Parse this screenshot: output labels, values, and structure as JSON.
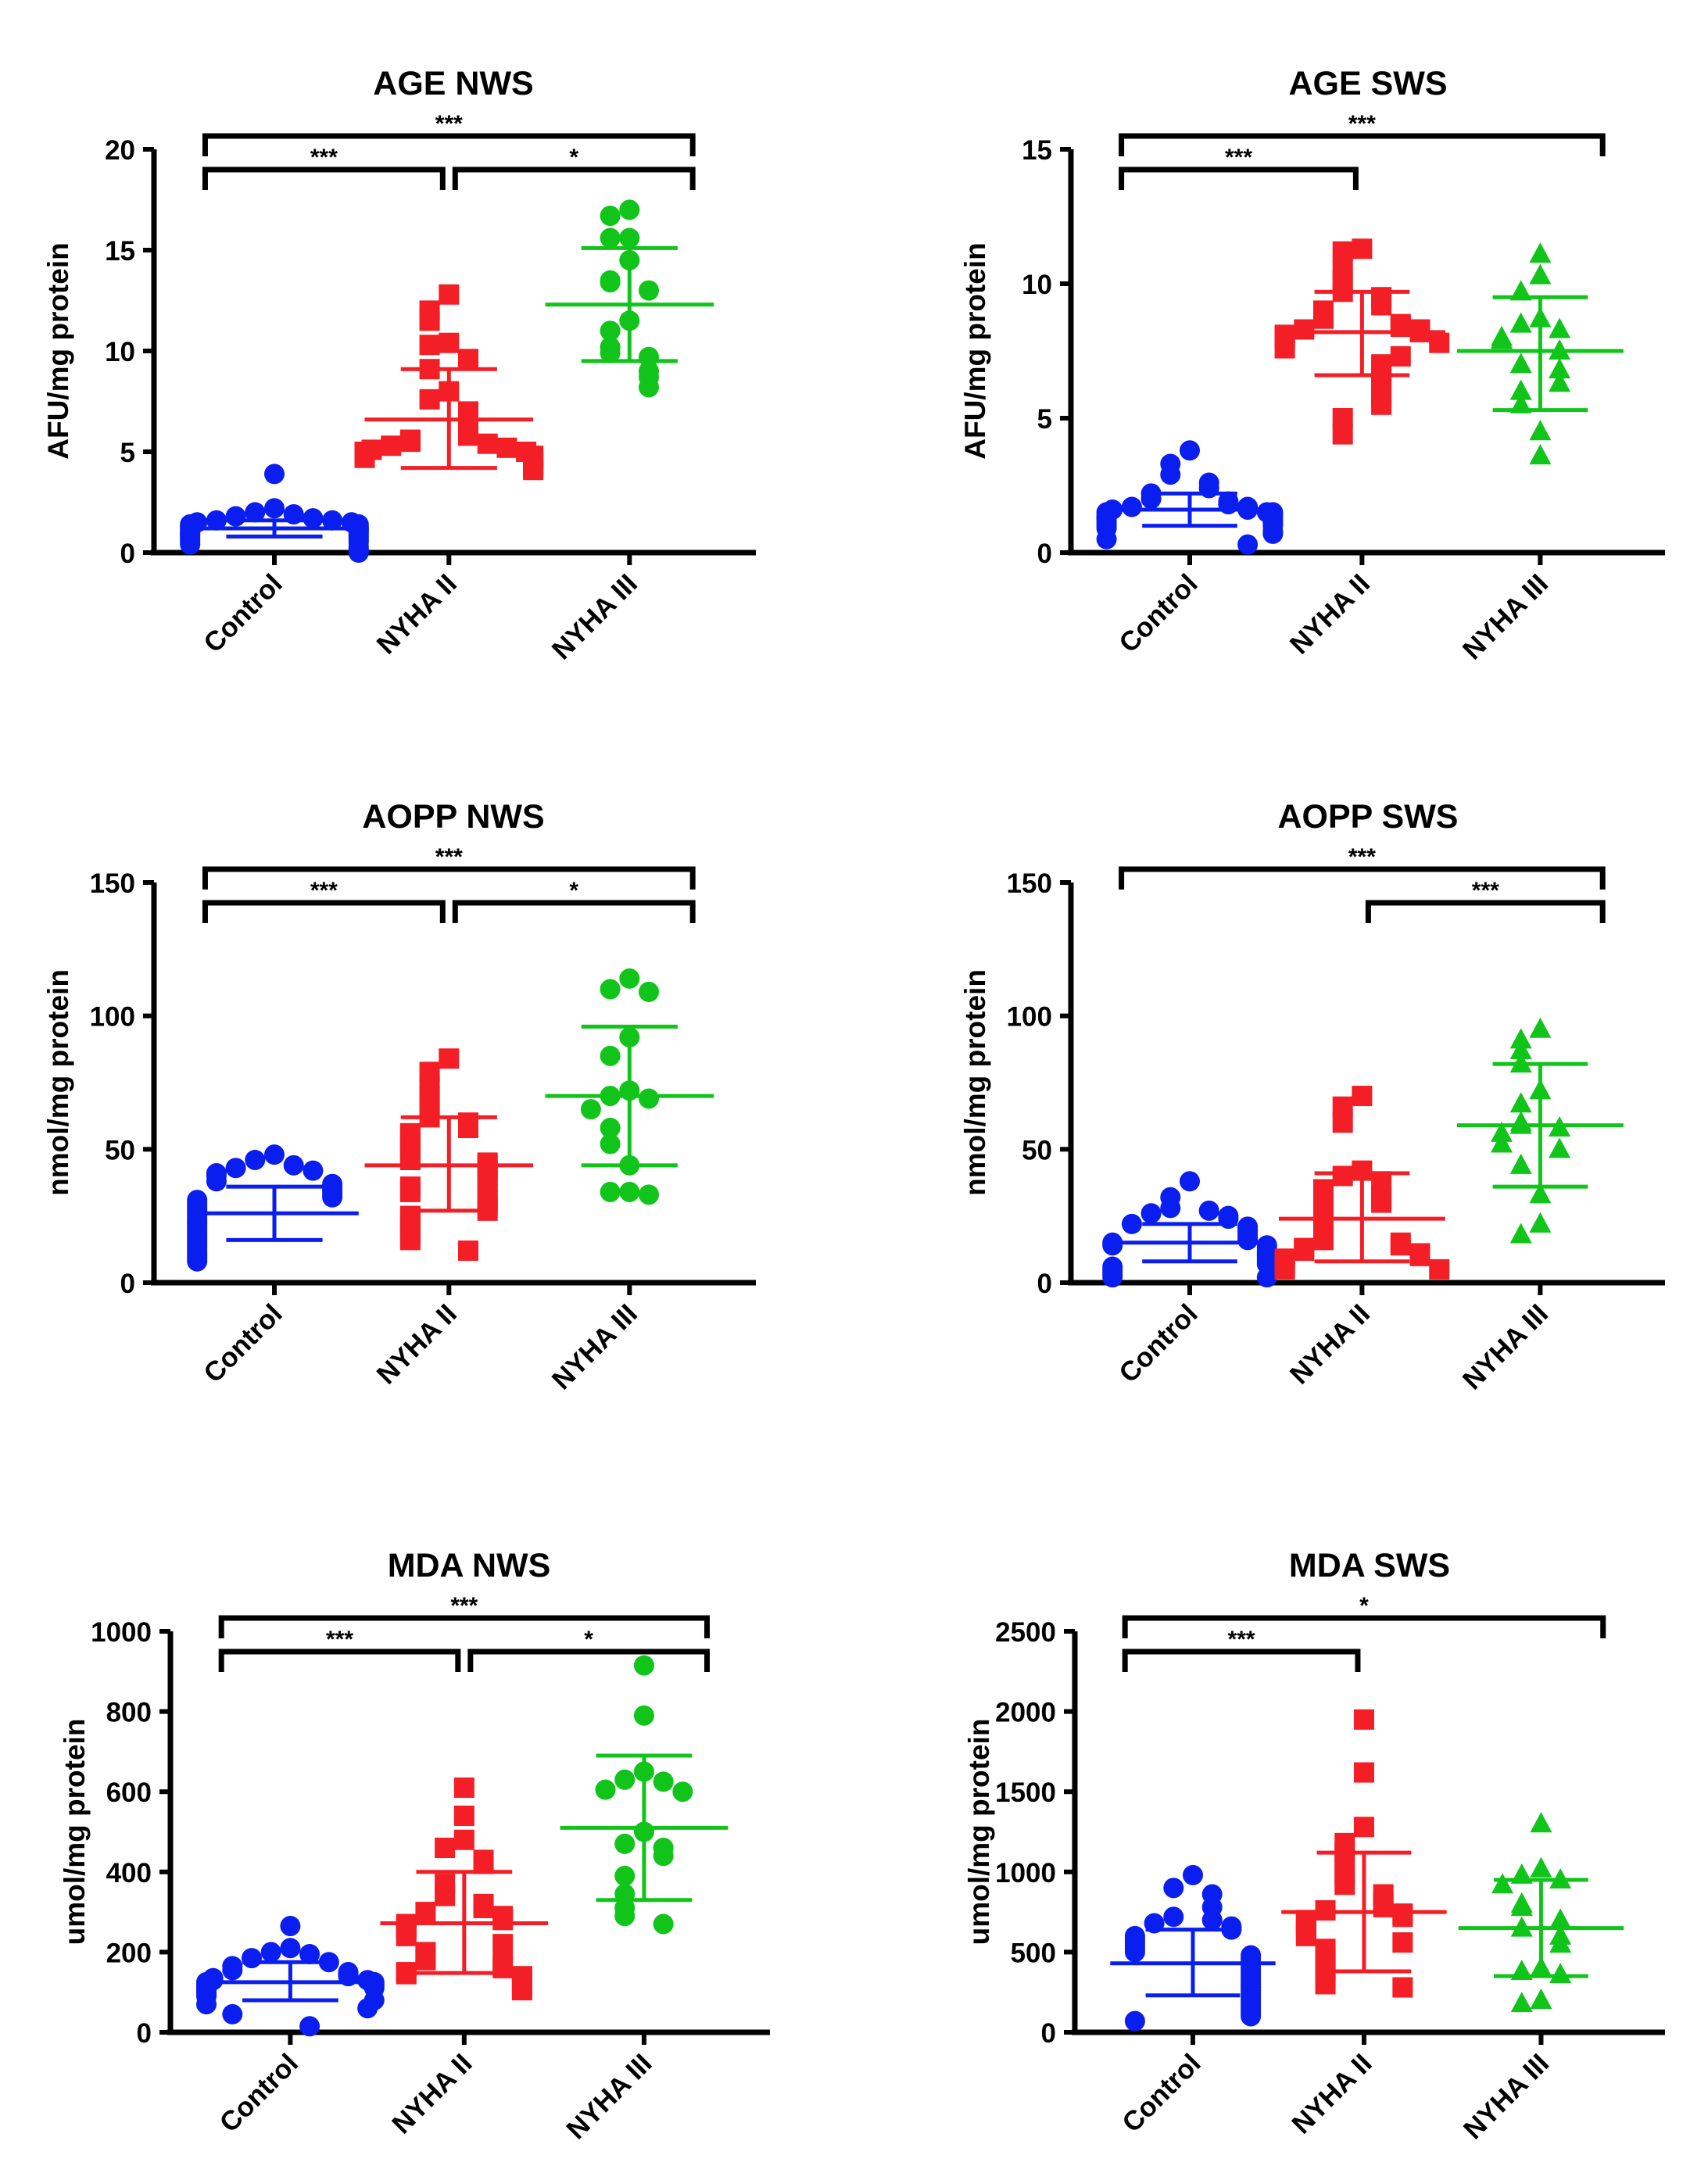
{
  "colors": {
    "Control": "#0a1ef0",
    "NYHA II": "#f41f26",
    "NYHA III": "#10c41a",
    "axis": "#000000"
  },
  "chart_data": [
    {
      "type": "scatter",
      "title": "AGE NWS",
      "ylabel": "AFU/mg protein",
      "ylim": [
        0,
        20
      ],
      "yticks": [
        0,
        5,
        10,
        15,
        20
      ],
      "categories": [
        "Control",
        "NYHA II",
        "NYHA III"
      ],
      "groups": [
        {
          "name": "Control",
          "marker": "circle",
          "mean": 1.2,
          "sd_low": 0.8,
          "sd_high": 1.6,
          "values": [
            3.9,
            2.2,
            2.0,
            1.9,
            1.8,
            1.7,
            1.6,
            1.6,
            1.5,
            1.5,
            1.4,
            1.4,
            1.3,
            1.3,
            1.3,
            1.2,
            1.2,
            1.2,
            1.1,
            1.1,
            1.1,
            1.0,
            1.0,
            1.0,
            0.9,
            0.9,
            0.9,
            0.8,
            0.8,
            0.7,
            0.7,
            0.6,
            0.6,
            0.5,
            0.5,
            0.4,
            0.3,
            0.2,
            0.1,
            0.0
          ]
        },
        {
          "name": "NYHA II",
          "marker": "square",
          "mean": 6.6,
          "sd_low": 4.2,
          "sd_high": 9.1,
          "values": [
            12.8,
            12.0,
            11.5,
            10.4,
            10.3,
            9.6,
            9.1,
            8.0,
            7.6,
            7.0,
            6.6,
            6.0,
            5.8,
            5.6,
            5.5,
            5.4,
            5.3,
            5.2,
            5.1,
            5.0,
            5.0,
            4.9,
            4.8,
            4.8,
            4.7,
            4.6,
            4.5,
            4.4,
            4.3,
            4.2,
            4.1
          ]
        },
        {
          "name": "NYHA III",
          "marker": "circle",
          "mean": 12.3,
          "sd_low": 9.5,
          "sd_high": 15.1,
          "values": [
            17.0,
            16.7,
            15.6,
            15.6,
            14.5,
            13.5,
            13.4,
            13.0,
            11.5,
            11.0,
            10.2,
            9.9,
            9.7,
            9.0,
            8.7,
            8.2
          ]
        }
      ],
      "significance": [
        {
          "from": "Control",
          "to": "NYHA III",
          "label": "***",
          "level": "top"
        },
        {
          "from": "Control",
          "to": "NYHA II",
          "label": "***",
          "level": "lower"
        },
        {
          "from": "NYHA II",
          "to": "NYHA III",
          "label": "*",
          "level": "lower"
        }
      ]
    },
    {
      "type": "scatter",
      "title": "AGE SWS",
      "ylabel": "AFU/mg protein",
      "ylim": [
        0,
        15
      ],
      "yticks": [
        0,
        5,
        10,
        15
      ],
      "categories": [
        "Control",
        "NYHA II",
        "NYHA III"
      ],
      "groups": [
        {
          "name": "Control",
          "marker": "circle",
          "mean": 1.6,
          "sd_low": 1.0,
          "sd_high": 2.2,
          "values": [
            3.8,
            3.3,
            2.9,
            2.6,
            2.4,
            2.2,
            2.0,
            1.9,
            1.8,
            1.7,
            1.7,
            1.6,
            1.6,
            1.5,
            1.5,
            1.5,
            1.4,
            1.4,
            1.4,
            1.3,
            1.3,
            1.3,
            1.2,
            1.2,
            1.1,
            1.1,
            1.0,
            1.0,
            0.9,
            0.8,
            0.7,
            0.5,
            0.3
          ]
        },
        {
          "name": "NYHA II",
          "marker": "square",
          "mean": 8.2,
          "sd_low": 6.6,
          "sd_high": 9.7,
          "values": [
            11.3,
            11.2,
            10.5,
            10.1,
            9.7,
            9.5,
            9.2,
            9.0,
            8.8,
            8.7,
            8.5,
            8.4,
            8.3,
            8.3,
            8.2,
            8.1,
            8.0,
            7.9,
            7.8,
            7.6,
            7.3,
            7.0,
            6.8,
            6.5,
            6.2,
            5.8,
            5.5,
            5.0,
            4.4
          ]
        },
        {
          "name": "NYHA III",
          "marker": "triangle",
          "mean": 7.5,
          "sd_low": 5.3,
          "sd_high": 9.5,
          "values": [
            11.1,
            10.3,
            9.7,
            8.7,
            8.5,
            8.3,
            8.0,
            7.9,
            7.5,
            7.0,
            6.8,
            6.3,
            6.0,
            5.5,
            4.5,
            3.6
          ]
        }
      ],
      "significance": [
        {
          "from": "Control",
          "to": "NYHA III",
          "label": "***",
          "level": "top"
        },
        {
          "from": "Control",
          "to": "NYHA II",
          "label": "***",
          "level": "lower"
        }
      ]
    },
    {
      "type": "scatter",
      "title": "AOPP NWS",
      "ylabel": "nmol/mg protein",
      "ylim": [
        0,
        150
      ],
      "yticks": [
        0,
        50,
        100,
        150
      ],
      "categories": [
        "Control",
        "NYHA II",
        "NYHA III"
      ],
      "groups": [
        {
          "name": "Control",
          "marker": "circle",
          "mean": 26,
          "sd_low": 16,
          "sd_high": 36,
          "values": [
            48,
            46,
            44,
            43,
            42,
            41,
            40,
            38,
            37,
            36,
            35,
            34,
            33,
            32,
            31,
            30,
            29,
            28,
            27,
            26,
            25,
            24,
            23,
            22,
            21,
            20,
            19,
            18,
            17,
            16,
            15,
            14,
            13,
            12,
            11,
            10,
            9,
            8
          ]
        },
        {
          "name": "NYHA II",
          "marker": "square",
          "mean": 44,
          "sd_low": 27,
          "sd_high": 62,
          "values": [
            84,
            79,
            74,
            70,
            66,
            62,
            60,
            58,
            56,
            54,
            52,
            50,
            48,
            46,
            45,
            44,
            42,
            40,
            38,
            36,
            34,
            33,
            31,
            29,
            27,
            25,
            23,
            21,
            18,
            16,
            12
          ]
        },
        {
          "name": "NYHA III",
          "marker": "circle",
          "mean": 70,
          "sd_low": 44,
          "sd_high": 96,
          "values": [
            114,
            110,
            109,
            92,
            85,
            72,
            70,
            69,
            65,
            58,
            52,
            44,
            34,
            34,
            33
          ]
        }
      ],
      "significance": [
        {
          "from": "Control",
          "to": "NYHA III",
          "label": "***",
          "level": "top"
        },
        {
          "from": "Control",
          "to": "NYHA II",
          "label": "***",
          "level": "lower"
        },
        {
          "from": "NYHA II",
          "to": "NYHA III",
          "label": "*",
          "level": "lower"
        }
      ]
    },
    {
      "type": "scatter",
      "title": "AOPP SWS",
      "ylabel": "nmol/mg protein",
      "ylim": [
        0,
        150
      ],
      "yticks": [
        0,
        50,
        100,
        150
      ],
      "categories": [
        "Control",
        "NYHA II",
        "NYHA III"
      ],
      "groups": [
        {
          "name": "Control",
          "marker": "circle",
          "mean": 15,
          "sd_low": 8,
          "sd_high": 22,
          "values": [
            38,
            32,
            28,
            27,
            26,
            25,
            24,
            22,
            21,
            20,
            19,
            18,
            17,
            16,
            15,
            14,
            14,
            13,
            12,
            11,
            10,
            9,
            8,
            7,
            6,
            5,
            4,
            3,
            2,
            2
          ]
        },
        {
          "name": "NYHA II",
          "marker": "square",
          "mean": 24,
          "sd_low": 8,
          "sd_high": 41,
          "values": [
            70,
            66,
            60,
            42,
            40,
            38,
            35,
            32,
            30,
            28,
            26,
            24,
            22,
            20,
            18,
            16,
            15,
            14,
            13,
            12,
            11,
            10,
            9,
            8,
            7,
            6,
            5,
            5
          ]
        },
        {
          "name": "NYHA III",
          "marker": "triangle",
          "mean": 59,
          "sd_low": 36,
          "sd_high": 82,
          "values": [
            95,
            91,
            87,
            82,
            72,
            67,
            60,
            59,
            58,
            56,
            52,
            50,
            44,
            33,
            22,
            18
          ]
        }
      ],
      "significance": [
        {
          "from": "Control",
          "to": "NYHA III",
          "label": "***",
          "level": "top"
        },
        {
          "from": "NYHA II",
          "to": "NYHA III",
          "label": "***",
          "level": "lower"
        }
      ]
    },
    {
      "type": "scatter",
      "title": "MDA NWS",
      "ylabel": "umol/mg protein",
      "ylim": [
        0,
        1000
      ],
      "yticks": [
        0,
        200,
        400,
        600,
        800,
        1000
      ],
      "categories": [
        "Control",
        "NYHA II",
        "NYHA III"
      ],
      "groups": [
        {
          "name": "Control",
          "marker": "circle",
          "mean": 125,
          "sd_low": 80,
          "sd_high": 175,
          "values": [
            265,
            210,
            200,
            195,
            185,
            175,
            165,
            155,
            150,
            145,
            140,
            135,
            130,
            130,
            125,
            125,
            120,
            120,
            115,
            115,
            110,
            110,
            105,
            100,
            95,
            90,
            80,
            70,
            60,
            45,
            15
          ]
        },
        {
          "name": "NYHA II",
          "marker": "square",
          "mean": 272,
          "sd_low": 148,
          "sd_high": 400,
          "values": [
            610,
            540,
            480,
            460,
            430,
            420,
            370,
            340,
            320,
            310,
            300,
            290,
            280,
            270,
            260,
            250,
            240,
            220,
            200,
            190,
            180,
            170,
            160,
            150,
            145,
            140,
            130,
            120,
            110,
            105
          ]
        },
        {
          "name": "NYHA III",
          "marker": "circle",
          "mean": 510,
          "sd_low": 330,
          "sd_high": 690,
          "values": [
            915,
            790,
            650,
            630,
            625,
            605,
            600,
            500,
            470,
            460,
            440,
            390,
            345,
            310,
            290,
            270
          ]
        }
      ],
      "significance": [
        {
          "from": "Control",
          "to": "NYHA III",
          "label": "***",
          "level": "top"
        },
        {
          "from": "Control",
          "to": "NYHA II",
          "label": "***",
          "level": "lower"
        },
        {
          "from": "NYHA II",
          "to": "NYHA III",
          "label": "*",
          "level": "lower"
        }
      ]
    },
    {
      "type": "scatter",
      "title": "MDA SWS",
      "ylabel": "umol/mg protein",
      "ylim": [
        0,
        2500
      ],
      "yticks": [
        0,
        500,
        1000,
        1500,
        2000,
        2500
      ],
      "categories": [
        "Control",
        "NYHA II",
        "NYHA III"
      ],
      "groups": [
        {
          "name": "Control",
          "marker": "circle",
          "mean": 430,
          "sd_low": 230,
          "sd_high": 640,
          "values": [
            980,
            900,
            860,
            780,
            720,
            700,
            680,
            660,
            640,
            600,
            580,
            560,
            540,
            520,
            500,
            480,
            460,
            440,
            420,
            400,
            380,
            360,
            340,
            320,
            300,
            280,
            260,
            240,
            220,
            200,
            180,
            160,
            140,
            120,
            100,
            70
          ]
        },
        {
          "name": "NYHA II",
          "marker": "square",
          "mean": 750,
          "sd_low": 380,
          "sd_high": 1120,
          "values": [
            1950,
            1620,
            1280,
            1180,
            1120,
            1050,
            980,
            920,
            860,
            820,
            780,
            760,
            740,
            720,
            700,
            680,
            650,
            620,
            600,
            560,
            520,
            480,
            440,
            400,
            380,
            340,
            300,
            280
          ]
        },
        {
          "name": "NYHA III",
          "marker": "triangle",
          "mean": 650,
          "sd_low": 350,
          "sd_high": 950,
          "values": [
            1300,
            1020,
            980,
            950,
            920,
            800,
            780,
            700,
            650,
            600,
            550,
            400,
            380,
            360,
            200,
            180
          ]
        }
      ],
      "significance": [
        {
          "from": "Control",
          "to": "NYHA III",
          "label": "*",
          "level": "top"
        },
        {
          "from": "Control",
          "to": "NYHA II",
          "label": "***",
          "level": "lower"
        }
      ]
    }
  ]
}
